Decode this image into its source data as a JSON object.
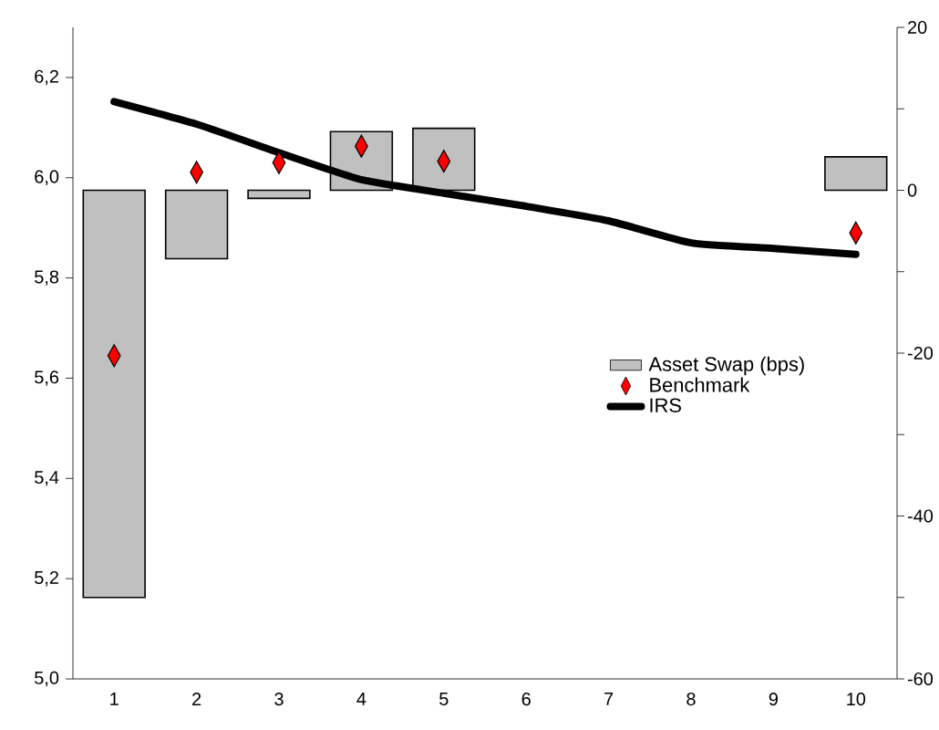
{
  "chart_data": {
    "type": "bar",
    "categories": [
      "1",
      "2",
      "3",
      "4",
      "5",
      "6",
      "7",
      "8",
      "9",
      "10"
    ],
    "series": [
      {
        "name": "Asset Swap (bps)",
        "axis": "y2",
        "color": "#c0c0c0",
        "values": [
          -50,
          -8.4,
          -1,
          7.2,
          7.6,
          null,
          null,
          null,
          null,
          4.1
        ]
      },
      {
        "name": "Benchmark",
        "type": "scatter",
        "marker": "diamond",
        "color": "#ff0000",
        "values": [
          5.645,
          6.011,
          6.03,
          6.063,
          6.033,
          null,
          null,
          null,
          null,
          5.89
        ]
      },
      {
        "name": "IRS",
        "type": "line",
        "marker": "none",
        "color": "#000000",
        "values": [
          6.152,
          6.107,
          6.05,
          5.996,
          5.969,
          5.943,
          5.914,
          5.87,
          5.859,
          5.847
        ]
      }
    ],
    "ylim": [
      5.0,
      6.3
    ],
    "yticks": [
      {
        "value": 5.0,
        "label": "5,0"
      },
      {
        "value": 5.2,
        "label": "5,2"
      },
      {
        "value": 5.4,
        "label": "5,4"
      },
      {
        "value": 5.6,
        "label": "5,6"
      },
      {
        "value": 5.8,
        "label": "5,8"
      },
      {
        "value": 6.0,
        "label": "6,0"
      },
      {
        "value": 6.2,
        "label": "6,2"
      }
    ],
    "y2lim": [
      -60,
      20
    ],
    "y2ticks": [
      -60,
      {
        "value": -50,
        "label": null
      },
      -40,
      {
        "value": -30,
        "label": null
      },
      -20,
      {
        "value": -10,
        "label": null
      },
      0,
      {
        "value": 10,
        "label": null
      },
      20
    ],
    "legend": "right"
  }
}
